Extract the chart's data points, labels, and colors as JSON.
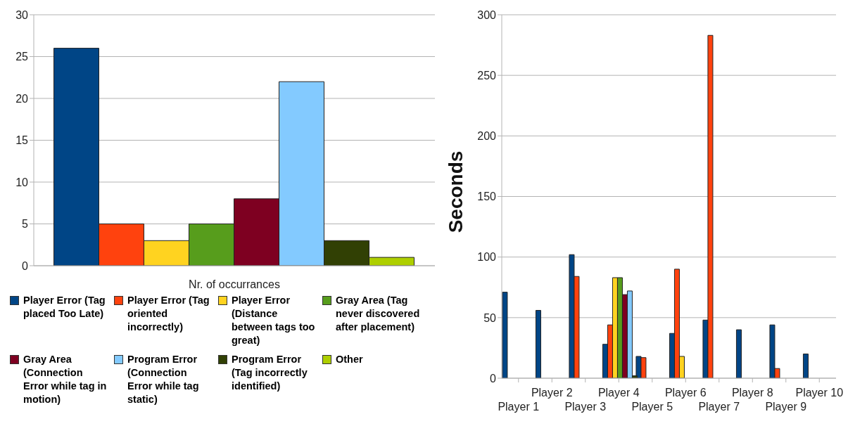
{
  "chart_data": [
    {
      "type": "bar",
      "xlabel": "Nr. of occurrances",
      "categories": [
        null
      ],
      "ylim": [
        0,
        30
      ],
      "yticks": [
        0,
        5,
        10,
        15,
        20,
        25,
        30
      ],
      "grid": "y",
      "legend": "bottom",
      "series": [
        {
          "name": "Player Error (Tag placed Too Late)",
          "color": "#004586",
          "values": [
            26
          ]
        },
        {
          "name": "Player Error (Tag oriented incorrectly)",
          "color": "#ff420e",
          "values": [
            5
          ]
        },
        {
          "name": "Player Error (Distance between tags too great)",
          "color": "#ffd320",
          "values": [
            3
          ]
        },
        {
          "name": "Gray Area (Tag never discovered after placement)",
          "color": "#579d1c",
          "values": [
            5
          ]
        },
        {
          "name": "Gray Area (Connection Error while tag in motion)",
          "color": "#7e0021",
          "values": [
            8
          ]
        },
        {
          "name": "Program Error (Connection Error while tag static)",
          "color": "#83caff",
          "values": [
            22
          ]
        },
        {
          "name": "Program Error (Tag incorrectly identified)",
          "color": "#314004",
          "values": [
            3
          ]
        },
        {
          "name": "Other",
          "color": "#aecf00",
          "values": [
            1
          ]
        }
      ]
    },
    {
      "type": "bar",
      "ylabel": "Seconds",
      "categories": [
        "Player 1",
        "Player 2",
        "Player 3",
        "Player 4",
        "Player 5",
        "Player 6",
        "Player 7",
        "Player 8",
        "Player 9",
        "Player 10"
      ],
      "ylim": [
        0,
        300
      ],
      "yticks": [
        0,
        50,
        100,
        150,
        200,
        250,
        300
      ],
      "grid": "y",
      "series": [
        {
          "color": "#004586",
          "values": [
            71,
            56,
            102,
            28,
            18,
            37,
            48,
            40,
            44,
            20
          ]
        },
        {
          "color": "#ff420e",
          "values": [
            null,
            null,
            84,
            44,
            17,
            90,
            283,
            null,
            8,
            null
          ]
        },
        {
          "color": "#ffd320",
          "values": [
            null,
            null,
            null,
            83,
            null,
            18,
            null,
            null,
            null,
            null
          ]
        },
        {
          "color": "#579d1c",
          "values": [
            null,
            null,
            null,
            83,
            null,
            null,
            null,
            null,
            null,
            null
          ]
        },
        {
          "color": "#7e0021",
          "values": [
            null,
            null,
            null,
            69,
            null,
            null,
            null,
            null,
            null,
            null
          ]
        },
        {
          "color": "#83caff",
          "values": [
            null,
            null,
            null,
            72,
            null,
            null,
            null,
            null,
            null,
            null
          ]
        },
        {
          "color": "#314004",
          "values": [
            null,
            null,
            null,
            2,
            null,
            null,
            null,
            null,
            null,
            null
          ]
        }
      ]
    }
  ]
}
